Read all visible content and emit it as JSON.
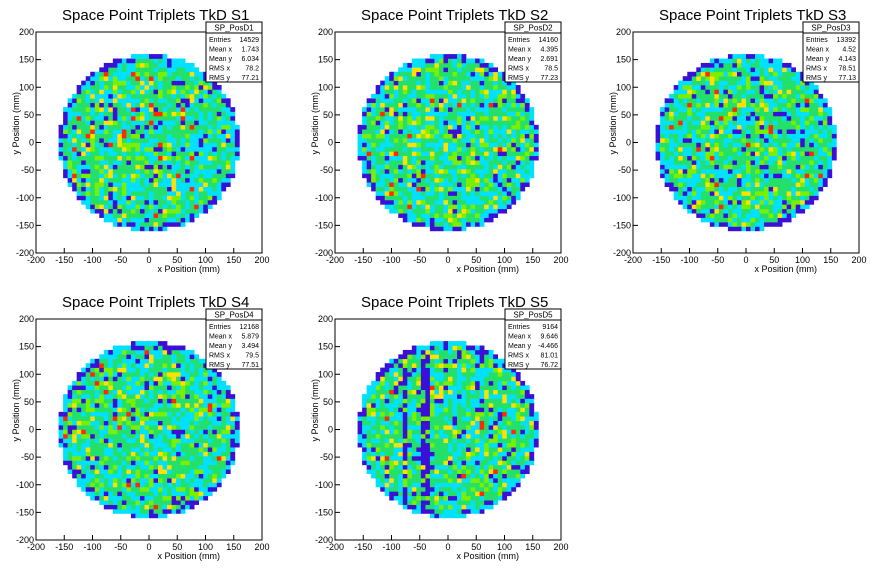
{
  "chart_data": [
    {
      "type": "heatmap",
      "title": "Space Point Triplets TkD S1",
      "xlabel": "x Position (mm)",
      "ylabel": "y Position (mm)",
      "xlim": [
        -200,
        200
      ],
      "ylim": [
        -200,
        200
      ],
      "xticks": [
        -200,
        -150,
        -100,
        -50,
        0,
        50,
        100,
        150,
        200
      ],
      "yticks": [
        -200,
        -150,
        -100,
        -50,
        0,
        50,
        100,
        150,
        200
      ],
      "hist_name": "SP_PosD1",
      "stats": [
        {
          "label": "Entries",
          "value": "14529"
        },
        {
          "label": "Mean x",
          "value": "1.743"
        },
        {
          "label": "Mean y",
          "value": "6.034"
        },
        {
          "label": "RMS x",
          "value": "78.2"
        },
        {
          "label": "RMS y",
          "value": "77.21"
        }
      ],
      "disk_radius": 160,
      "palette": [
        "#3a10d8",
        "#00e0ff",
        "#22e06a",
        "#7af000",
        "#ffe000",
        "#ff2a00"
      ]
    },
    {
      "type": "heatmap",
      "title": "Space Point Triplets TkD S2",
      "xlabel": "x Position (mm)",
      "ylabel": "y Position (mm)",
      "xlim": [
        -200,
        200
      ],
      "ylim": [
        -200,
        200
      ],
      "xticks": [
        -200,
        -150,
        -100,
        -50,
        0,
        50,
        100,
        150,
        200
      ],
      "yticks": [
        -200,
        -150,
        -100,
        -50,
        0,
        50,
        100,
        150,
        200
      ],
      "hist_name": "SP_PosD2",
      "stats": [
        {
          "label": "Entries",
          "value": "14160"
        },
        {
          "label": "Mean x",
          "value": "4.395"
        },
        {
          "label": "Mean y",
          "value": "2.691"
        },
        {
          "label": "RMS x",
          "value": "78.5"
        },
        {
          "label": "RMS y",
          "value": "77.23"
        }
      ],
      "disk_radius": 160,
      "palette": [
        "#3a10d8",
        "#00e0ff",
        "#22e06a",
        "#7af000",
        "#ffe000",
        "#ff2a00"
      ]
    },
    {
      "type": "heatmap",
      "title": "Space Point Triplets TkD S3",
      "xlabel": "x Position (mm)",
      "ylabel": "y Position (mm)",
      "xlim": [
        -200,
        200
      ],
      "ylim": [
        -200,
        200
      ],
      "xticks": [
        -200,
        -150,
        -100,
        -50,
        0,
        50,
        100,
        150,
        200
      ],
      "yticks": [
        -200,
        -150,
        -100,
        -50,
        0,
        50,
        100,
        150,
        200
      ],
      "hist_name": "SP_PosD3",
      "stats": [
        {
          "label": "Entries",
          "value": "13392"
        },
        {
          "label": "Mean x",
          "value": "4.52"
        },
        {
          "label": "Mean y",
          "value": "4.143"
        },
        {
          "label": "RMS x",
          "value": "78.51"
        },
        {
          "label": "RMS y",
          "value": "77.13"
        }
      ],
      "disk_radius": 160,
      "palette": [
        "#3a10d8",
        "#00e0ff",
        "#22e06a",
        "#7af000",
        "#ffe000",
        "#ff2a00"
      ]
    },
    {
      "type": "heatmap",
      "title": "Space Point Triplets TkD S4",
      "xlabel": "x Position (mm)",
      "ylabel": "y Position (mm)",
      "xlim": [
        -200,
        200
      ],
      "ylim": [
        -200,
        200
      ],
      "xticks": [
        -200,
        -150,
        -100,
        -50,
        0,
        50,
        100,
        150,
        200
      ],
      "yticks": [
        -200,
        -150,
        -100,
        -50,
        0,
        50,
        100,
        150,
        200
      ],
      "hist_name": "SP_PosD4",
      "stats": [
        {
          "label": "Entries",
          "value": "12168"
        },
        {
          "label": "Mean x",
          "value": "5.879"
        },
        {
          "label": "Mean y",
          "value": "3.494"
        },
        {
          "label": "RMS x",
          "value": "79.5"
        },
        {
          "label": "RMS y",
          "value": "77.51"
        }
      ],
      "disk_radius": 160,
      "palette": [
        "#3a10d8",
        "#00e0ff",
        "#22e06a",
        "#7af000",
        "#ffe000",
        "#ff2a00"
      ]
    },
    {
      "type": "heatmap",
      "title": "Space Point Triplets TkD S5",
      "xlabel": "x Position (mm)",
      "ylabel": "y Position (mm)",
      "xlim": [
        -200,
        200
      ],
      "ylim": [
        -200,
        200
      ],
      "xticks": [
        -200,
        -150,
        -100,
        -50,
        0,
        50,
        100,
        150,
        200
      ],
      "yticks": [
        -200,
        -150,
        -100,
        -50,
        0,
        50,
        100,
        150,
        200
      ],
      "hist_name": "SP_PosD5",
      "stats": [
        {
          "label": "Entries",
          "value": "9164"
        },
        {
          "label": "Mean x",
          "value": "9.646"
        },
        {
          "label": "Mean y",
          "value": "-4.466"
        },
        {
          "label": "RMS x",
          "value": "81.01"
        },
        {
          "label": "RMS y",
          "value": "76.72"
        }
      ],
      "disk_radius": 160,
      "palette": [
        "#3a10d8",
        "#00e0ff",
        "#22e06a",
        "#7af000",
        "#ffe000",
        "#ff2a00"
      ]
    }
  ]
}
